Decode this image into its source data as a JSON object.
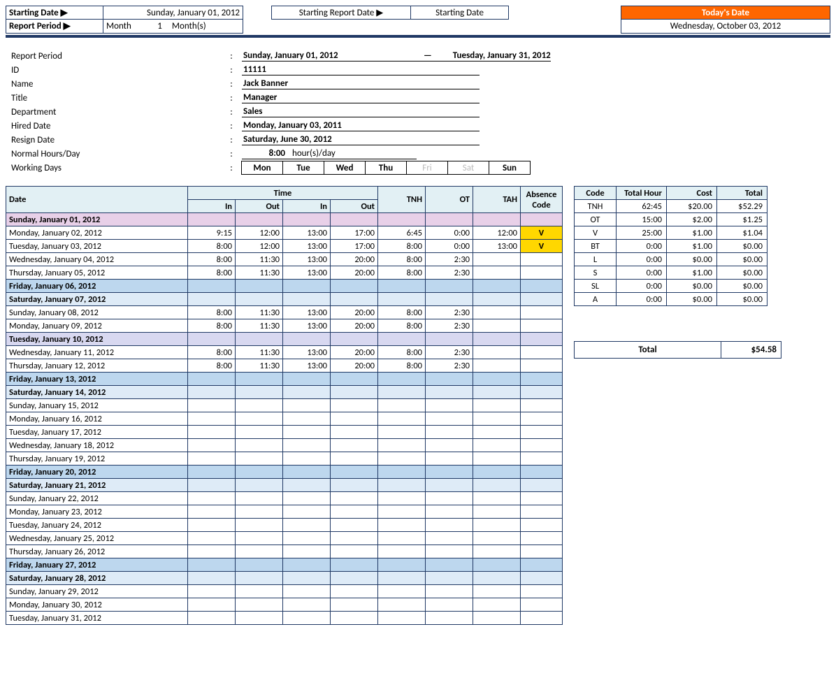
{
  "header": {
    "starting_date_lbl": "Starting Date ▶",
    "starting_date_val": "Sunday, January 01, 2012",
    "report_period_lbl": "Report Period ▶",
    "rp_unit1": "Month",
    "rp_num": "1",
    "rp_unit2": "Month(s)",
    "srd_lbl": "Starting Report Date ▶",
    "srd_val": "Starting Date",
    "today_lbl": "Today's Date",
    "today_val": "Wednesday, October 03, 2012"
  },
  "info": {
    "report_period_lbl": "Report Period",
    "report_start": "Sunday, January 01, 2012",
    "report_end": "Tuesday, January 31, 2012",
    "id_lbl": "ID",
    "id": "11111",
    "name_lbl": "Name",
    "name": "Jack Banner",
    "title_lbl": "Title",
    "title": "Manager",
    "dept_lbl": "Department",
    "dept": "Sales",
    "hired_lbl": "Hired Date",
    "hired": "Monday, January 03, 2011",
    "resign_lbl": "Resign Date",
    "resign": "Saturday, June 30, 2012",
    "nhd_lbl": "Normal Hours/Day",
    "nhd_val": "8:00",
    "nhd_unit": "hour(s)/day",
    "wd_lbl": "Working Days",
    "days": [
      "Mon",
      "Tue",
      "Wed",
      "Thu",
      "Fri",
      "Sat",
      "Sun"
    ],
    "days_on": [
      true,
      true,
      true,
      true,
      false,
      false,
      true
    ]
  },
  "ts_headers": {
    "date": "Date",
    "time": "Time",
    "in": "In",
    "out": "Out",
    "tnh": "TNH",
    "ot": "OT",
    "tah": "TAH",
    "abs": "Absence Code"
  },
  "ts_rows": [
    {
      "date": "Sunday, January 01, 2012",
      "cls": "row-pink"
    },
    {
      "date": "Monday, January 02, 2012",
      "in1": "9:15",
      "out1": "12:00",
      "in2": "13:00",
      "out2": "17:00",
      "tnh": "6:45",
      "ot": "0:00",
      "tah": "12:00",
      "abs": "V"
    },
    {
      "date": "Tuesday, January 03, 2012",
      "in1": "8:00",
      "out1": "12:00",
      "in2": "13:00",
      "out2": "17:00",
      "tnh": "8:00",
      "ot": "0:00",
      "tah": "13:00",
      "abs": "V"
    },
    {
      "date": "Wednesday, January 04, 2012",
      "in1": "8:00",
      "out1": "11:30",
      "in2": "13:00",
      "out2": "20:00",
      "tnh": "8:00",
      "ot": "2:30"
    },
    {
      "date": "Thursday, January 05, 2012",
      "in1": "8:00",
      "out1": "11:30",
      "in2": "13:00",
      "out2": "20:00",
      "tnh": "8:00",
      "ot": "2:30"
    },
    {
      "date": "Friday, January 06, 2012",
      "cls": "row-blue"
    },
    {
      "date": "Saturday, January 07, 2012",
      "cls": "row-ltbl"
    },
    {
      "date": "Sunday, January 08, 2012",
      "in1": "8:00",
      "out1": "11:30",
      "in2": "13:00",
      "out2": "20:00",
      "tnh": "8:00",
      "ot": "2:30"
    },
    {
      "date": "Monday, January 09, 2012",
      "in1": "8:00",
      "out1": "11:30",
      "in2": "13:00",
      "out2": "20:00",
      "tnh": "8:00",
      "ot": "2:30"
    },
    {
      "date": "Tuesday, January 10, 2012",
      "cls": "row-lav"
    },
    {
      "date": "Wednesday, January 11, 2012",
      "in1": "8:00",
      "out1": "11:30",
      "in2": "13:00",
      "out2": "20:00",
      "tnh": "8:00",
      "ot": "2:30"
    },
    {
      "date": "Thursday, January 12, 2012",
      "in1": "8:00",
      "out1": "11:30",
      "in2": "13:00",
      "out2": "20:00",
      "tnh": "8:00",
      "ot": "2:30"
    },
    {
      "date": "Friday, January 13, 2012",
      "cls": "row-blue"
    },
    {
      "date": "Saturday, January 14, 2012",
      "cls": "row-ltbl"
    },
    {
      "date": "Sunday, January 15, 2012"
    },
    {
      "date": "Monday, January 16, 2012"
    },
    {
      "date": "Tuesday, January 17, 2012"
    },
    {
      "date": "Wednesday, January 18, 2012"
    },
    {
      "date": "Thursday, January 19, 2012"
    },
    {
      "date": "Friday, January 20, 2012",
      "cls": "row-blue"
    },
    {
      "date": "Saturday, January 21, 2012",
      "cls": "row-ltbl"
    },
    {
      "date": "Sunday, January 22, 2012"
    },
    {
      "date": "Monday, January 23, 2012"
    },
    {
      "date": "Tuesday, January 24, 2012"
    },
    {
      "date": "Wednesday, January 25, 2012"
    },
    {
      "date": "Thursday, January 26, 2012"
    },
    {
      "date": "Friday, January 27, 2012",
      "cls": "row-blue"
    },
    {
      "date": "Saturday, January 28, 2012",
      "cls": "row-ltbl"
    },
    {
      "date": "Sunday, January 29, 2012"
    },
    {
      "date": "Monday, January 30, 2012"
    },
    {
      "date": "Tuesday, January 31, 2012"
    }
  ],
  "sum_headers": {
    "code": "Code",
    "hour": "Total Hour",
    "cost": "Cost",
    "total": "Total"
  },
  "sum_rows": [
    {
      "code": "TNH",
      "hour": "62:45",
      "cost": "$20.00",
      "total": "$52.29"
    },
    {
      "code": "OT",
      "hour": "15:00",
      "cost": "$2.00",
      "total": "$1.25"
    },
    {
      "code": "V",
      "hour": "25:00",
      "cost": "$1.00",
      "total": "$1.04"
    },
    {
      "code": "BT",
      "hour": "0:00",
      "cost": "$1.00",
      "total": "$0.00"
    },
    {
      "code": "L",
      "hour": "0:00",
      "cost": "$0.00",
      "total": "$0.00"
    },
    {
      "code": "S",
      "hour": "0:00",
      "cost": "$1.00",
      "total": "$0.00"
    },
    {
      "code": "SL",
      "hour": "0:00",
      "cost": "$0.00",
      "total": "$0.00"
    },
    {
      "code": "A",
      "hour": "0:00",
      "cost": "$0.00",
      "total": "$0.00"
    }
  ],
  "grand": {
    "label": "Total",
    "value": "$54.58"
  },
  "colors": {
    "border": "#1f3864",
    "header_bg": "#e2f0f4",
    "orange": "#ff6600",
    "pink": "#e8d0e8",
    "lavender": "#d8d8f0",
    "blue": "#bdd7ee",
    "ltblue": "#deebf7",
    "yellow": "#ffd700"
  }
}
